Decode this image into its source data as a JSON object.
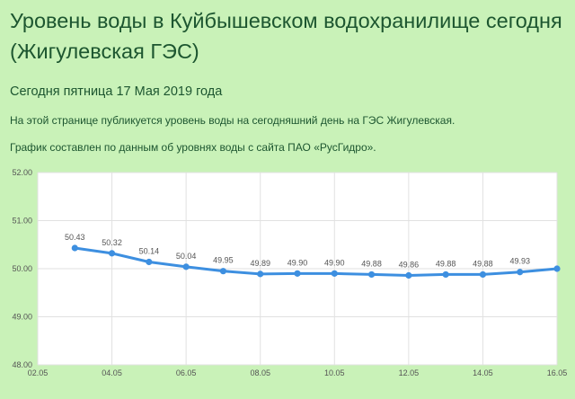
{
  "header": {
    "title": "Уровень воды в Куйбышевском водохранилище сегодня (Жигулевская ГЭС)",
    "date_line": "Сегодня пятница 17 Мая 2019 года",
    "paragraph1": "На этой странице публикуется уровень воды на сегодняшний день на ГЭС Жигулевская.",
    "paragraph2": "График составлен по данным об уровнях воды с сайта ПАО «РусГидро»."
  },
  "colors": {
    "background": "#c9f2b8",
    "plot_background": "#ffffff",
    "line": "#3d8fe0",
    "grid": "#e1e1e1",
    "text": "#1d5630"
  },
  "chart_data": {
    "type": "line",
    "title": "",
    "xlabel": "",
    "ylabel": "",
    "ylim": [
      48.0,
      52.0
    ],
    "y_ticks": [
      "52.00",
      "51.00",
      "50.00",
      "49.00",
      "48.00"
    ],
    "x_ticks": [
      "02.05",
      "04.05",
      "06.05",
      "08.05",
      "10.05",
      "12.05",
      "14.05",
      "16.05"
    ],
    "grid": true,
    "series": [
      {
        "x": [
          "03.05",
          "04.05",
          "05.05",
          "06.05",
          "07.05",
          "08.05",
          "09.05",
          "10.05",
          "11.05",
          "12.05",
          "13.05",
          "14.05",
          "15.05",
          "16.05"
        ],
        "values": [
          50.43,
          50.32,
          50.14,
          50.04,
          49.95,
          49.89,
          49.9,
          49.9,
          49.88,
          49.86,
          49.88,
          49.88,
          49.93,
          50.0
        ],
        "data_labels": [
          "50.43",
          "50.32",
          "50.14",
          "50.04",
          "49.95",
          "49.89",
          "49.90",
          "49.90",
          "49.88",
          "49.86",
          "49.88",
          "49.88",
          "49.93",
          ""
        ]
      }
    ]
  }
}
